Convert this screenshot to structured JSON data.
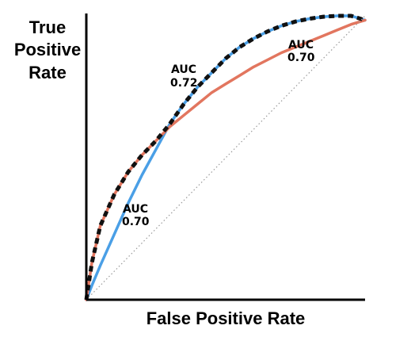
{
  "chart_data": {
    "type": "line",
    "title": "",
    "xlabel": "False Positive Rate",
    "ylabel_lines": [
      "True",
      "Positive",
      "Rate"
    ],
    "xlim": [
      0,
      1
    ],
    "ylim": [
      0,
      1
    ],
    "grid": false,
    "series": [
      {
        "color": "#4A9FE6",
        "style": "solid",
        "x": [
          0.0,
          0.02,
          0.05,
          0.1,
          0.15,
          0.2,
          0.25,
          0.3,
          0.35,
          0.4,
          0.45,
          0.5,
          0.55,
          0.6,
          0.65,
          0.7,
          0.75,
          0.8,
          0.85,
          0.9,
          0.95,
          1.0
        ],
        "y": [
          0.0,
          0.05,
          0.12,
          0.23,
          0.34,
          0.44,
          0.53,
          0.62,
          0.69,
          0.75,
          0.8,
          0.85,
          0.89,
          0.92,
          0.945,
          0.965,
          0.98,
          0.99,
          0.997,
          1.0,
          1.0,
          0.985
        ]
      },
      {
        "color": "#E2765F",
        "style": "solid",
        "x": [
          0.0,
          0.02,
          0.05,
          0.1,
          0.15,
          0.2,
          0.25,
          0.3,
          0.35,
          0.4,
          0.45,
          0.5,
          0.55,
          0.6,
          0.65,
          0.7,
          0.75,
          0.8,
          0.85,
          0.9,
          0.95,
          1.0
        ],
        "y": [
          0.0,
          0.13,
          0.26,
          0.37,
          0.45,
          0.51,
          0.56,
          0.61,
          0.65,
          0.69,
          0.73,
          0.76,
          0.79,
          0.82,
          0.845,
          0.87,
          0.89,
          0.91,
          0.93,
          0.95,
          0.97,
          0.985
        ]
      },
      {
        "color": "#111111",
        "style": "dashed",
        "x": [
          0.0,
          0.02,
          0.05,
          0.1,
          0.15,
          0.2,
          0.25,
          0.3,
          0.35,
          0.4,
          0.45,
          0.5,
          0.55,
          0.6,
          0.65,
          0.7,
          0.75,
          0.8,
          0.85,
          0.9,
          0.95,
          1.0
        ],
        "y": [
          0.0,
          0.13,
          0.26,
          0.37,
          0.45,
          0.51,
          0.56,
          0.62,
          0.69,
          0.75,
          0.8,
          0.85,
          0.89,
          0.92,
          0.945,
          0.965,
          0.98,
          0.99,
          0.997,
          1.0,
          1.0,
          0.985
        ]
      },
      {
        "color": "#9A9A9A",
        "style": "dotted",
        "x": [
          0.0,
          1.0
        ],
        "y": [
          0.0,
          1.0
        ]
      }
    ],
    "annotations": [
      {
        "label": "AUC",
        "value": "0.72",
        "x": 0.29,
        "y": 0.81
      },
      {
        "label": "AUC",
        "value": "0.70",
        "x": 0.73,
        "y": 0.9
      },
      {
        "label": "AUC",
        "value": "0.70",
        "x": 0.12,
        "y": 0.28
      }
    ]
  }
}
